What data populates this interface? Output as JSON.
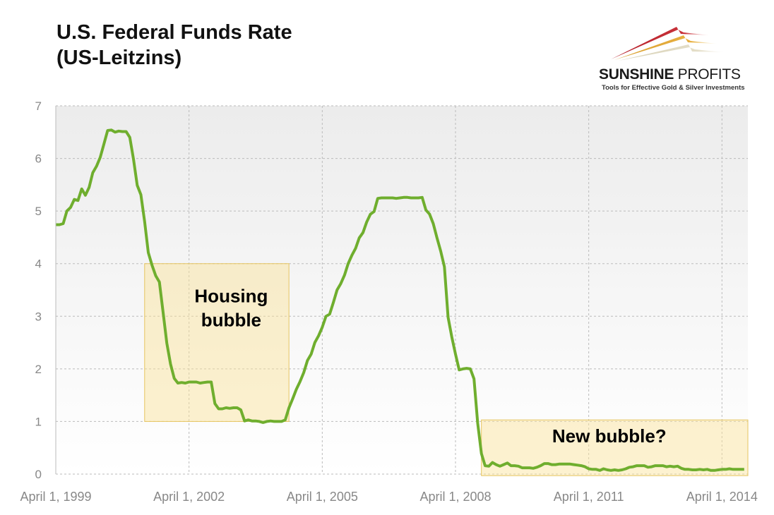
{
  "logo": {
    "name_bold": "SUNSHINE",
    "name_thin": "PROFITS",
    "tagline": "Tools for Effective Gold & Silver Investments"
  },
  "chart_data": {
    "type": "line",
    "title": [
      "U.S. Federal Funds Rate",
      "(US-Leitzins)"
    ],
    "xlabel": "",
    "ylabel": "",
    "ylim": [
      0,
      7
    ],
    "xlim": [
      "1999-04",
      "2014-11"
    ],
    "yticks": [
      0,
      1,
      2,
      3,
      4,
      5,
      6,
      7
    ],
    "xticks": [
      {
        "date": "1999-04",
        "label": "April 1, 1999"
      },
      {
        "date": "2002-04",
        "label": "April 1, 2002"
      },
      {
        "date": "2005-04",
        "label": "April 1, 2005"
      },
      {
        "date": "2008-04",
        "label": "April 1, 2008"
      },
      {
        "date": "2011-04",
        "label": "April 1, 2011"
      },
      {
        "date": "2014-04",
        "label": "April 1, 2014"
      }
    ],
    "grid": true,
    "line_color": "#6fae2e",
    "series": [
      {
        "x": [
          "1999-04",
          "1999-05",
          "1999-06",
          "1999-07",
          "1999-08",
          "1999-09",
          "1999-10",
          "1999-11",
          "1999-12",
          "2000-01",
          "2000-02",
          "2000-03",
          "2000-04",
          "2000-05",
          "2000-06",
          "2000-07",
          "2000-08",
          "2000-09",
          "2000-10",
          "2000-11",
          "2000-12",
          "2001-01",
          "2001-02",
          "2001-03",
          "2001-04",
          "2001-05",
          "2001-06",
          "2001-07",
          "2001-08",
          "2001-09",
          "2001-10",
          "2001-11",
          "2001-12",
          "2002-01",
          "2002-02",
          "2002-03",
          "2002-04",
          "2002-05",
          "2002-06",
          "2002-07",
          "2002-08",
          "2002-09",
          "2002-10",
          "2002-11",
          "2002-12",
          "2003-01",
          "2003-02",
          "2003-03",
          "2003-04",
          "2003-05",
          "2003-06",
          "2003-07",
          "2003-08",
          "2003-09",
          "2003-10",
          "2003-11",
          "2003-12",
          "2004-01",
          "2004-02",
          "2004-03",
          "2004-04",
          "2004-05",
          "2004-06",
          "2004-07",
          "2004-08",
          "2004-09",
          "2004-10",
          "2004-11",
          "2004-12",
          "2005-01",
          "2005-02",
          "2005-03",
          "2005-04",
          "2005-05",
          "2005-06",
          "2005-07",
          "2005-08",
          "2005-09",
          "2005-10",
          "2005-11",
          "2005-12",
          "2006-01",
          "2006-02",
          "2006-03",
          "2006-04",
          "2006-05",
          "2006-06",
          "2006-07",
          "2006-08",
          "2006-09",
          "2006-10",
          "2006-11",
          "2006-12",
          "2007-01",
          "2007-02",
          "2007-03",
          "2007-04",
          "2007-05",
          "2007-06",
          "2007-07",
          "2007-08",
          "2007-09",
          "2007-10",
          "2007-11",
          "2007-12",
          "2008-01",
          "2008-02",
          "2008-03",
          "2008-04",
          "2008-05",
          "2008-06",
          "2008-07",
          "2008-08",
          "2008-09",
          "2008-10",
          "2008-11",
          "2008-12",
          "2009-01",
          "2009-02",
          "2009-03",
          "2009-04",
          "2009-05",
          "2009-06",
          "2009-07",
          "2009-08",
          "2009-09",
          "2009-10",
          "2009-11",
          "2009-12",
          "2010-01",
          "2010-02",
          "2010-03",
          "2010-04",
          "2010-05",
          "2010-06",
          "2010-07",
          "2010-08",
          "2010-09",
          "2010-10",
          "2010-11",
          "2010-12",
          "2011-01",
          "2011-02",
          "2011-03",
          "2011-04",
          "2011-05",
          "2011-06",
          "2011-07",
          "2011-08",
          "2011-09",
          "2011-10",
          "2011-11",
          "2011-12",
          "2012-01",
          "2012-02",
          "2012-03",
          "2012-04",
          "2012-05",
          "2012-06",
          "2012-07",
          "2012-08",
          "2012-09",
          "2012-10",
          "2012-11",
          "2012-12",
          "2013-01",
          "2013-02",
          "2013-03",
          "2013-04",
          "2013-05",
          "2013-06",
          "2013-07",
          "2013-08",
          "2013-09",
          "2013-10",
          "2013-11",
          "2013-12",
          "2014-01",
          "2014-02",
          "2014-03",
          "2014-04",
          "2014-05",
          "2014-06",
          "2014-07",
          "2014-08",
          "2014-09",
          "2014-10"
        ],
        "values": [
          4.74,
          4.74,
          4.76,
          5.0,
          5.07,
          5.22,
          5.2,
          5.42,
          5.3,
          5.45,
          5.73,
          5.85,
          6.02,
          6.27,
          6.53,
          6.54,
          6.5,
          6.52,
          6.51,
          6.51,
          6.4,
          5.98,
          5.49,
          5.31,
          4.8,
          4.21,
          3.97,
          3.77,
          3.65,
          3.07,
          2.49,
          2.09,
          1.82,
          1.73,
          1.74,
          1.73,
          1.75,
          1.75,
          1.75,
          1.73,
          1.74,
          1.75,
          1.75,
          1.34,
          1.24,
          1.24,
          1.26,
          1.25,
          1.26,
          1.26,
          1.22,
          1.01,
          1.03,
          1.01,
          1.01,
          1.0,
          0.98,
          1.0,
          1.01,
          1.0,
          1.0,
          1.0,
          1.03,
          1.26,
          1.43,
          1.61,
          1.76,
          1.93,
          2.16,
          2.28,
          2.5,
          2.63,
          2.79,
          3.0,
          3.04,
          3.26,
          3.5,
          3.62,
          3.78,
          4.0,
          4.16,
          4.29,
          4.49,
          4.59,
          4.79,
          4.94,
          4.99,
          5.24,
          5.25,
          5.25,
          5.25,
          5.25,
          5.24,
          5.25,
          5.26,
          5.26,
          5.25,
          5.25,
          5.25,
          5.26,
          5.02,
          4.94,
          4.76,
          4.49,
          4.24,
          3.94,
          2.98,
          2.61,
          2.28,
          1.98,
          2.0,
          2.01,
          2.0,
          1.81,
          0.97,
          0.39,
          0.16,
          0.15,
          0.22,
          0.18,
          0.15,
          0.18,
          0.21,
          0.16,
          0.16,
          0.15,
          0.12,
          0.12,
          0.12,
          0.11,
          0.13,
          0.16,
          0.2,
          0.2,
          0.18,
          0.18,
          0.19,
          0.19,
          0.19,
          0.19,
          0.18,
          0.17,
          0.16,
          0.14,
          0.1,
          0.09,
          0.09,
          0.07,
          0.1,
          0.08,
          0.07,
          0.08,
          0.07,
          0.08,
          0.1,
          0.13,
          0.14,
          0.16,
          0.16,
          0.16,
          0.13,
          0.14,
          0.16,
          0.16,
          0.16,
          0.14,
          0.15,
          0.14,
          0.15,
          0.11,
          0.09,
          0.09,
          0.08,
          0.08,
          0.09,
          0.08,
          0.09,
          0.07,
          0.07,
          0.08,
          0.09,
          0.09,
          0.1,
          0.09,
          0.09,
          0.09,
          0.09
        ]
      }
    ],
    "annotations": [
      {
        "label": [
          "Housing",
          "bubble"
        ],
        "x_from": "2001-04",
        "x_to": "2004-07",
        "y_from": 1,
        "y_to": 4
      },
      {
        "label": [
          "New bubble?"
        ],
        "x_from": "2008-11",
        "x_to": "2014-11",
        "y_from": -0.03,
        "y_to": 1.03
      }
    ]
  }
}
